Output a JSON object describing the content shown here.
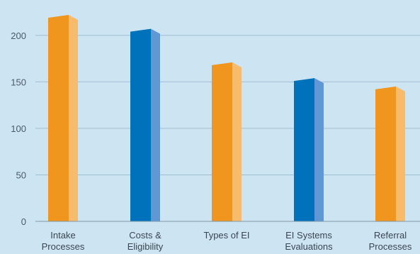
{
  "chart_data": {
    "type": "bar",
    "title": "",
    "xlabel": "",
    "ylabel": "",
    "categories": [
      [
        "Intake",
        "Processes"
      ],
      [
        "Costs &",
        "Eligibility"
      ],
      [
        "Types of EI"
      ],
      [
        "EI Systems",
        "Evaluations"
      ],
      [
        "Referral",
        "Processes"
      ]
    ],
    "values": [
      222,
      207,
      171,
      154,
      145
    ],
    "ylim": [
      0,
      238
    ],
    "yticks": [
      0,
      50,
      100,
      150,
      200
    ],
    "grid": true,
    "legend": "none",
    "colors": {
      "orange_front": "#f0951e",
      "orange_side": "#f8bb6c",
      "blue_front": "#0072bc",
      "blue_side": "#5f98d4"
    },
    "bar_color_pattern": [
      "orange",
      "blue",
      "orange",
      "blue",
      "orange"
    ]
  }
}
